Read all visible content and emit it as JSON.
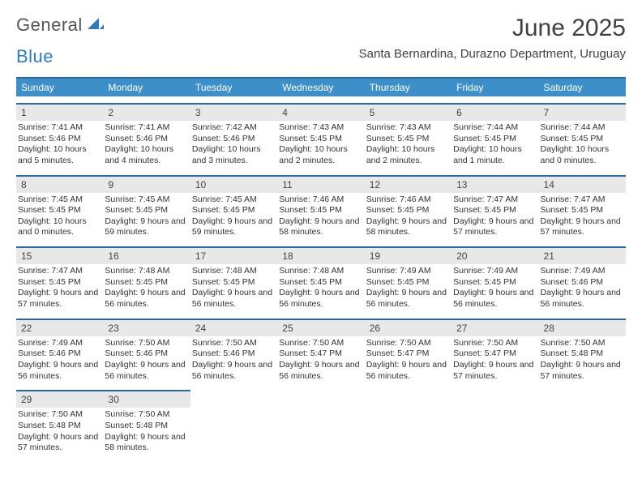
{
  "logo": {
    "text1": "General",
    "text2": "Blue"
  },
  "title": "June 2025",
  "subtitle": "Santa Bernardina, Durazno Department, Uruguay",
  "colors": {
    "header_bg": "#3d8fc9",
    "header_border": "#2a6aa0",
    "daynum_bg": "#e8e8e8",
    "text": "#333333"
  },
  "weekdays": [
    "Sunday",
    "Monday",
    "Tuesday",
    "Wednesday",
    "Thursday",
    "Friday",
    "Saturday"
  ],
  "weeks": [
    [
      {
        "n": "1",
        "sr": "7:41 AM",
        "ss": "5:46 PM",
        "dl": "10 hours and 5 minutes."
      },
      {
        "n": "2",
        "sr": "7:41 AM",
        "ss": "5:46 PM",
        "dl": "10 hours and 4 minutes."
      },
      {
        "n": "3",
        "sr": "7:42 AM",
        "ss": "5:46 PM",
        "dl": "10 hours and 3 minutes."
      },
      {
        "n": "4",
        "sr": "7:43 AM",
        "ss": "5:45 PM",
        "dl": "10 hours and 2 minutes."
      },
      {
        "n": "5",
        "sr": "7:43 AM",
        "ss": "5:45 PM",
        "dl": "10 hours and 2 minutes."
      },
      {
        "n": "6",
        "sr": "7:44 AM",
        "ss": "5:45 PM",
        "dl": "10 hours and 1 minute."
      },
      {
        "n": "7",
        "sr": "7:44 AM",
        "ss": "5:45 PM",
        "dl": "10 hours and 0 minutes."
      }
    ],
    [
      {
        "n": "8",
        "sr": "7:45 AM",
        "ss": "5:45 PM",
        "dl": "10 hours and 0 minutes."
      },
      {
        "n": "9",
        "sr": "7:45 AM",
        "ss": "5:45 PM",
        "dl": "9 hours and 59 minutes."
      },
      {
        "n": "10",
        "sr": "7:45 AM",
        "ss": "5:45 PM",
        "dl": "9 hours and 59 minutes."
      },
      {
        "n": "11",
        "sr": "7:46 AM",
        "ss": "5:45 PM",
        "dl": "9 hours and 58 minutes."
      },
      {
        "n": "12",
        "sr": "7:46 AM",
        "ss": "5:45 PM",
        "dl": "9 hours and 58 minutes."
      },
      {
        "n": "13",
        "sr": "7:47 AM",
        "ss": "5:45 PM",
        "dl": "9 hours and 57 minutes."
      },
      {
        "n": "14",
        "sr": "7:47 AM",
        "ss": "5:45 PM",
        "dl": "9 hours and 57 minutes."
      }
    ],
    [
      {
        "n": "15",
        "sr": "7:47 AM",
        "ss": "5:45 PM",
        "dl": "9 hours and 57 minutes."
      },
      {
        "n": "16",
        "sr": "7:48 AM",
        "ss": "5:45 PM",
        "dl": "9 hours and 56 minutes."
      },
      {
        "n": "17",
        "sr": "7:48 AM",
        "ss": "5:45 PM",
        "dl": "9 hours and 56 minutes."
      },
      {
        "n": "18",
        "sr": "7:48 AM",
        "ss": "5:45 PM",
        "dl": "9 hours and 56 minutes."
      },
      {
        "n": "19",
        "sr": "7:49 AM",
        "ss": "5:45 PM",
        "dl": "9 hours and 56 minutes."
      },
      {
        "n": "20",
        "sr": "7:49 AM",
        "ss": "5:45 PM",
        "dl": "9 hours and 56 minutes."
      },
      {
        "n": "21",
        "sr": "7:49 AM",
        "ss": "5:46 PM",
        "dl": "9 hours and 56 minutes."
      }
    ],
    [
      {
        "n": "22",
        "sr": "7:49 AM",
        "ss": "5:46 PM",
        "dl": "9 hours and 56 minutes."
      },
      {
        "n": "23",
        "sr": "7:50 AM",
        "ss": "5:46 PM",
        "dl": "9 hours and 56 minutes."
      },
      {
        "n": "24",
        "sr": "7:50 AM",
        "ss": "5:46 PM",
        "dl": "9 hours and 56 minutes."
      },
      {
        "n": "25",
        "sr": "7:50 AM",
        "ss": "5:47 PM",
        "dl": "9 hours and 56 minutes."
      },
      {
        "n": "26",
        "sr": "7:50 AM",
        "ss": "5:47 PM",
        "dl": "9 hours and 56 minutes."
      },
      {
        "n": "27",
        "sr": "7:50 AM",
        "ss": "5:47 PM",
        "dl": "9 hours and 57 minutes."
      },
      {
        "n": "28",
        "sr": "7:50 AM",
        "ss": "5:48 PM",
        "dl": "9 hours and 57 minutes."
      }
    ],
    [
      {
        "n": "29",
        "sr": "7:50 AM",
        "ss": "5:48 PM",
        "dl": "9 hours and 57 minutes."
      },
      {
        "n": "30",
        "sr": "7:50 AM",
        "ss": "5:48 PM",
        "dl": "9 hours and 58 minutes."
      },
      null,
      null,
      null,
      null,
      null
    ]
  ],
  "labels": {
    "sunrise": "Sunrise:",
    "sunset": "Sunset:",
    "daylight": "Daylight:"
  }
}
